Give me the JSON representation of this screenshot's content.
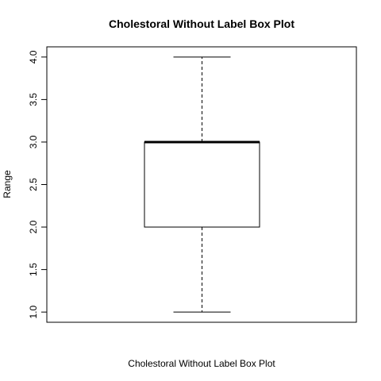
{
  "chart_data": {
    "type": "box",
    "title": "Cholestoral Without Label Box Plot",
    "xlabel": "Cholestoral Without Label Box Plot",
    "ylabel": "Range",
    "ylim": [
      0.88,
      4.12
    ],
    "yticks": [
      1.0,
      1.5,
      2.0,
      2.5,
      3.0,
      3.5,
      4.0
    ],
    "ytick_labels": [
      "1.0",
      "1.5",
      "2.0",
      "2.5",
      "3.0",
      "3.5",
      "4.0"
    ],
    "boxes": [
      {
        "min": 1.0,
        "q1": 2.0,
        "median": 3.0,
        "q3": 3.0,
        "max": 4.0
      }
    ],
    "grid": false,
    "legend": "none",
    "colors": {
      "box_fill": "#ffffff",
      "stroke": "#000000"
    }
  }
}
